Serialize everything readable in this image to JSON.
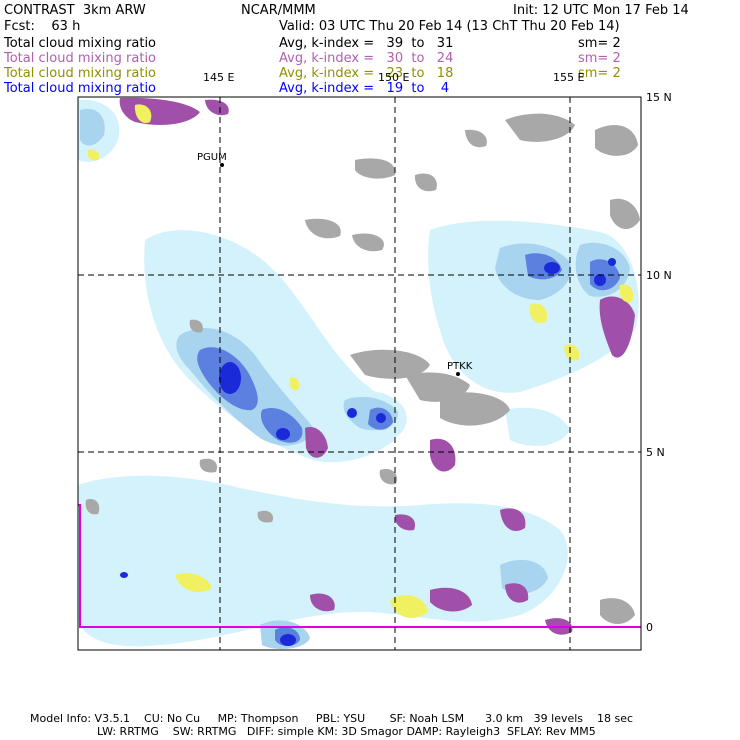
{
  "header": {
    "title_left": "CONTRAST  3km ARW",
    "title_center": "NCAR/MMM",
    "init": "Init: 12 UTC Mon 17 Feb 14",
    "fcst": "Fcst:    63 h",
    "valid": "Valid: 03 UTC Thu 20 Feb 14 (13 ChT Thu 20 Feb 14)"
  },
  "legend": {
    "rows": [
      {
        "field": "Total cloud mixing ratio",
        "stat": "Avg, k-index =   39  to   31",
        "sm": "sm= 2",
        "color": "#000000"
      },
      {
        "field": "Total cloud mixing ratio",
        "stat": "Avg, k-index =   30  to   24",
        "sm": "sm= 2",
        "color": "#b060b0"
      },
      {
        "field": "Total cloud mixing ratio",
        "stat": "Avg, k-index =   23  to   18",
        "sm": "sm= 2",
        "color": "#909000"
      },
      {
        "field": "Total cloud mixing ratio",
        "stat": "Avg, k-index =   19  to    4",
        "sm": "",
        "color": "#0000ff"
      }
    ]
  },
  "map": {
    "lon_labels": [
      "145 E",
      "150 E",
      "155 E"
    ],
    "lat_labels": [
      "15 N",
      "10 N",
      "5 N",
      "0"
    ],
    "stations": [
      "PGUM",
      "PTKK"
    ],
    "colors": {
      "land": "#a8a8a8",
      "cloud_light": "#d4f2fb",
      "cloud_mid": "#a8d4f0",
      "cloud_dark": "#5c80e0",
      "cloud_core": "#1a2ad8",
      "mid_cloud": "#a050a8",
      "low_cloud": "#f0f060",
      "boundary": "#e000e0"
    }
  },
  "footer": {
    "line1": "Model Info: V3.5.1    CU: No Cu     MP: Thompson     PBL: YSU       SF: Noah LSM      3.0 km   39 levels    18 sec",
    "line2": "LW: RRTMG    SW: RRTMG   DIFF: simple KM: 3D Smagor DAMP: Rayleigh3  SFLAY: Rev MM5"
  }
}
